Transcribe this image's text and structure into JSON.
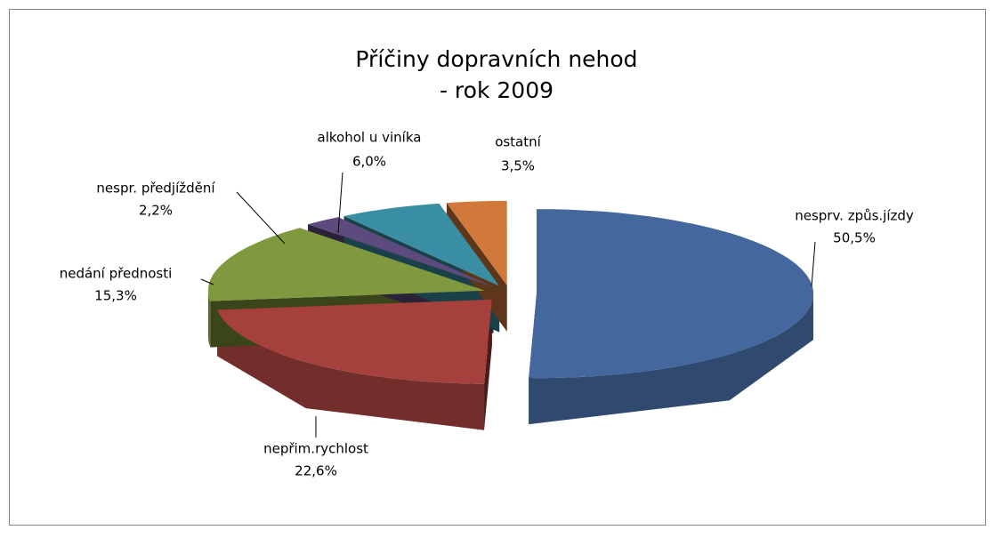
{
  "chart_data": {
    "type": "pie3d",
    "title": "Příčiny dopravních nehod",
    "subtitle": "- rok 2009",
    "categories": [
      "nesprv. způs.jízdy",
      "nepřim.rychlost",
      "nedání přednosti",
      "nespr. předjíždění",
      "alkohol u viníka",
      "ostatní"
    ],
    "values": [
      50.5,
      22.6,
      15.3,
      2.2,
      6.0,
      3.5
    ],
    "value_labels": [
      "50,5%",
      "22,6%",
      "15,3%",
      "2,2%",
      "6,0%",
      "3,5%"
    ],
    "colors": [
      "#44689e",
      "#a5403d",
      "#80993f",
      "#5e4b7d",
      "#3a8ea3",
      "#d0793a"
    ]
  }
}
